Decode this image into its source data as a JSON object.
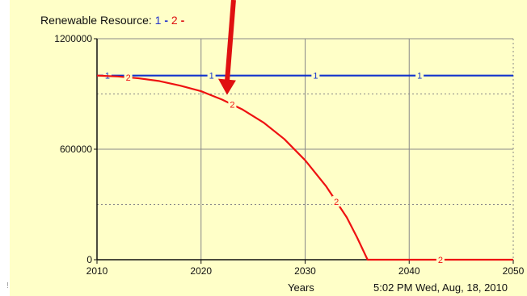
{
  "header": {
    "title_prefix": "Renewable Resource: ",
    "legend_1": "1",
    "legend_2": "2",
    "dash": "-"
  },
  "footer": {
    "xlabel": "Years",
    "timestamp": "5:02 PM Wed, Aug, 18, 2010"
  },
  "edge_mark": "!",
  "colors": {
    "background": "#ffffc8",
    "series_1": "#1133cc",
    "series_2": "#ee1111",
    "annotation_arrow": "#e01010",
    "grid": "#888888"
  },
  "chart_data": {
    "type": "line",
    "title": "Renewable Resource: 1 - 2 -",
    "xlabel": "Years",
    "ylabel": "",
    "xlim": [
      2010,
      2050
    ],
    "ylim": [
      0,
      1200000
    ],
    "x_ticks": [
      "2010",
      "2020",
      "2030",
      "2040",
      "2050"
    ],
    "y_ticks": [
      "1200000",
      "600000",
      "0"
    ],
    "y_tick_values": [
      1200000,
      600000,
      0
    ],
    "grid": true,
    "series": [
      {
        "name": "1",
        "color": "#1133cc",
        "x": [
          2010,
          2050
        ],
        "values": [
          1000000,
          1000000
        ],
        "marker_x": [
          2011,
          2021,
          2031,
          2041
        ]
      },
      {
        "name": "2",
        "color": "#ee1111",
        "x": [
          2010,
          2012,
          2014,
          2016,
          2018,
          2020,
          2022,
          2024,
          2026,
          2028,
          2030,
          2032,
          2034,
          2035,
          2036,
          2040,
          2045,
          2050
        ],
        "values": [
          1000000,
          995000,
          985000,
          970000,
          945000,
          915000,
          870000,
          815000,
          745000,
          655000,
          540000,
          400000,
          230000,
          120000,
          0,
          0,
          0,
          0
        ],
        "marker_x": [
          2013,
          2023,
          2033,
          2043
        ]
      }
    ],
    "annotation": {
      "type": "arrow",
      "points_to_x": 2022.5,
      "points_to_y": 860000
    }
  }
}
